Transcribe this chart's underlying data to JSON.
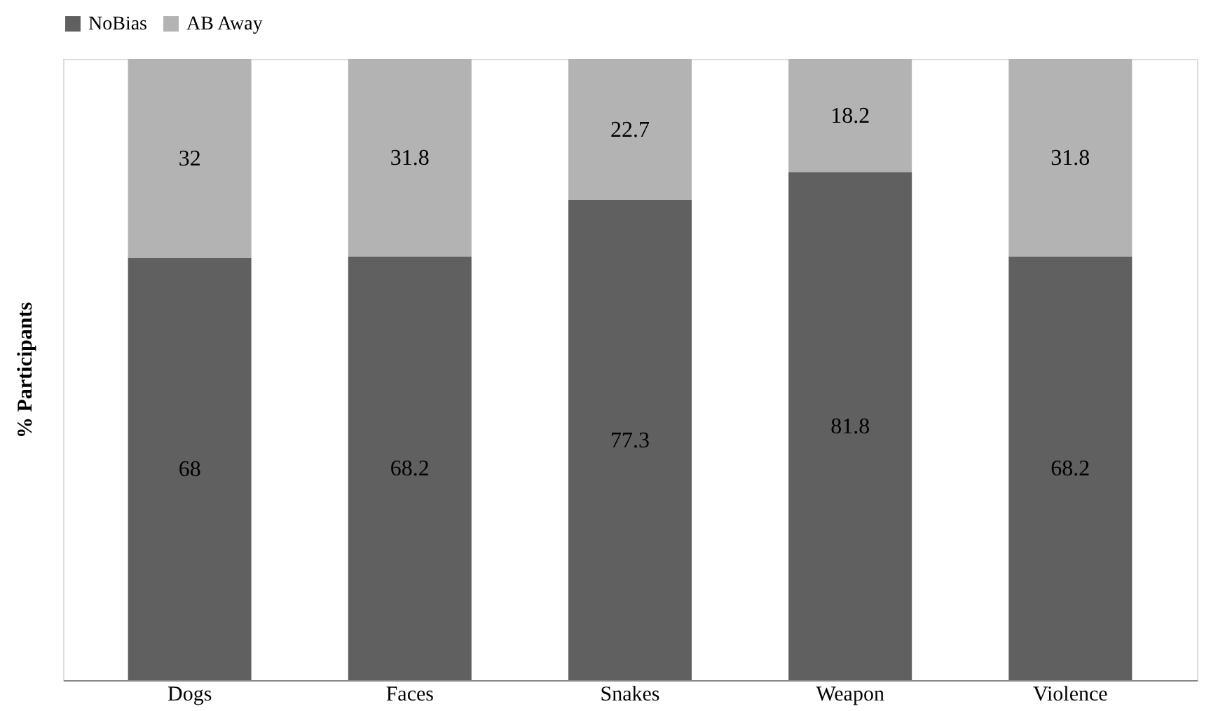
{
  "chart_data": {
    "type": "bar",
    "stacked": true,
    "ylabel": "% Participants",
    "categories": [
      "Dogs",
      "Faces",
      "Snakes",
      "Weapon",
      "Violence"
    ],
    "series": [
      {
        "name": "NoBias",
        "color": "#606060",
        "values": [
          68,
          68.2,
          77.3,
          81.8,
          68.2
        ]
      },
      {
        "name": "AB Away",
        "color": "#b3b3b3",
        "values": [
          32,
          31.8,
          22.7,
          18.2,
          31.8
        ]
      }
    ],
    "data_labels": true,
    "legend": "top",
    "grid": false,
    "tick_labels": "x"
  }
}
